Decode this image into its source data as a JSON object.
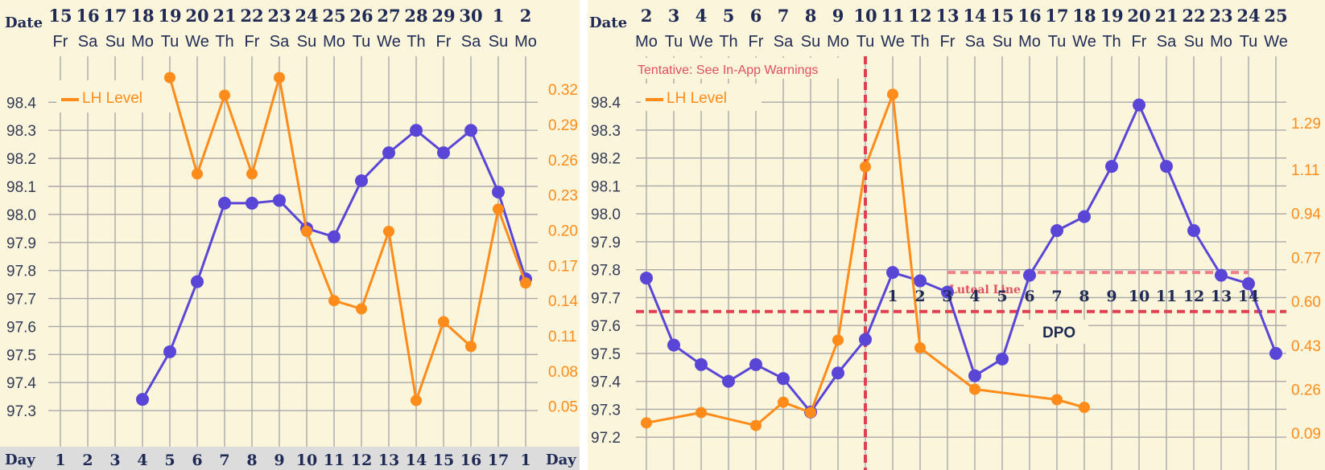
{
  "colors": {
    "background": "#fbf5db",
    "grid": "#a9a9a9",
    "temp": "#5a46d6",
    "lh": "#ff8c1a",
    "marker": "#e0404f",
    "text": "#1f2a55",
    "dayband": "#dcdcdc"
  },
  "chart_data": [
    {
      "type": "line",
      "date_label": "Date",
      "day_label_left": "Day",
      "day_label_right": "Day",
      "dates": [
        "15",
        "16",
        "17",
        "18",
        "19",
        "20",
        "21",
        "22",
        "23",
        "24",
        "25",
        "26",
        "27",
        "28",
        "29",
        "30",
        "1",
        "2"
      ],
      "weekdays": [
        "Fr",
        "Sa",
        "Su",
        "Mo",
        "Tu",
        "We",
        "Th",
        "Fr",
        "Sa",
        "Su",
        "Mo",
        "Tu",
        "We",
        "Th",
        "Fr",
        "Sa",
        "Su",
        "Mo"
      ],
      "cycle_days": [
        "1",
        "2",
        "3",
        "4",
        "5",
        "6",
        "7",
        "8",
        "9",
        "10",
        "11",
        "12",
        "13",
        "14",
        "15",
        "16",
        "17",
        "1"
      ],
      "legend": "LH Level",
      "y_left_ticks": [
        "98.4",
        "98.3",
        "98.2",
        "98.1",
        "98.0",
        "97.9",
        "97.8",
        "97.7",
        "97.6",
        "97.5",
        "97.4",
        "97.3"
      ],
      "y_right_ticks": [
        "0.32",
        "0.29",
        "0.26",
        "0.23",
        "0.20",
        "0.17",
        "0.14",
        "0.11",
        "0.08",
        "0.05"
      ],
      "ylim_left": [
        97.24,
        98.53
      ],
      "ylim_right": [
        0.032,
        0.34
      ],
      "series": [
        {
          "name": "Temperature",
          "axis": "left",
          "color": "#5a46d6",
          "values": [
            null,
            null,
            null,
            97.34,
            97.51,
            97.76,
            98.04,
            98.04,
            98.05,
            97.95,
            97.92,
            98.12,
            98.22,
            98.3,
            98.22,
            98.3,
            98.08,
            97.77
          ]
        },
        {
          "name": "LH Level",
          "axis": "right",
          "color": "#ff8c1a",
          "values": [
            null,
            null,
            null,
            null,
            0.33,
            0.248,
            0.315,
            0.248,
            0.33,
            0.199,
            0.14,
            0.133,
            0.199,
            0.055,
            0.122,
            0.101,
            0.218,
            0.155
          ]
        }
      ]
    },
    {
      "type": "line",
      "date_label": "Date",
      "dates": [
        "2",
        "3",
        "4",
        "5",
        "6",
        "7",
        "8",
        "9",
        "10",
        "11",
        "12",
        "13",
        "14",
        "15",
        "16",
        "17",
        "18",
        "19",
        "20",
        "21",
        "22",
        "23",
        "24",
        "25"
      ],
      "weekdays": [
        "Mo",
        "Tu",
        "We",
        "Th",
        "Fr",
        "Sa",
        "Su",
        "Mo",
        "Tu",
        "We",
        "Th",
        "Fr",
        "Sa",
        "Su",
        "Mo",
        "Tu",
        "We",
        "Th",
        "Fr",
        "Sa",
        "Su",
        "Mo",
        "Tu",
        "We"
      ],
      "legend": "LH Level",
      "annotation": "Tentative: See In-App Warnings",
      "luteal_label": "Luteal Line",
      "dpo_label": "DPO",
      "dpo_days": [
        "1",
        "2",
        "3",
        "4",
        "5",
        "6",
        "7",
        "8",
        "9",
        "10",
        "11",
        "12",
        "13",
        "14"
      ],
      "y_left_ticks": [
        "98.4",
        "98.3",
        "98.2",
        "98.1",
        "98.0",
        "97.9",
        "97.8",
        "97.7",
        "97.6",
        "97.5",
        "97.4",
        "97.3",
        "97.2"
      ],
      "y_right_ticks": [
        "1.29",
        "1.11",
        "0.94",
        "0.77",
        "0.60",
        "0.43",
        "0.26",
        "0.09"
      ],
      "ylim_left": [
        97.14,
        98.53
      ],
      "ylim_right": [
        0.01,
        1.51
      ],
      "coverline_temp": 97.65,
      "luteal_line_temp": 97.79,
      "ovulation_date": "10",
      "series": [
        {
          "name": "Temperature",
          "axis": "left",
          "color": "#5a46d6",
          "values": [
            97.77,
            97.53,
            97.46,
            97.4,
            97.46,
            97.41,
            97.29,
            97.43,
            97.55,
            97.79,
            97.76,
            97.72,
            97.42,
            97.48,
            97.78,
            97.94,
            97.99,
            98.17,
            98.39,
            98.17,
            97.94,
            97.78,
            97.75,
            97.5
          ]
        },
        {
          "name": "LH Level",
          "axis": "right",
          "color": "#ff8c1a",
          "values": [
            0.13,
            null,
            0.17,
            null,
            0.12,
            0.21,
            0.17,
            0.45,
            1.12,
            1.4,
            0.42,
            null,
            0.26,
            null,
            null,
            0.22,
            0.19,
            null,
            null,
            null,
            null,
            null,
            null,
            null
          ]
        }
      ]
    }
  ]
}
